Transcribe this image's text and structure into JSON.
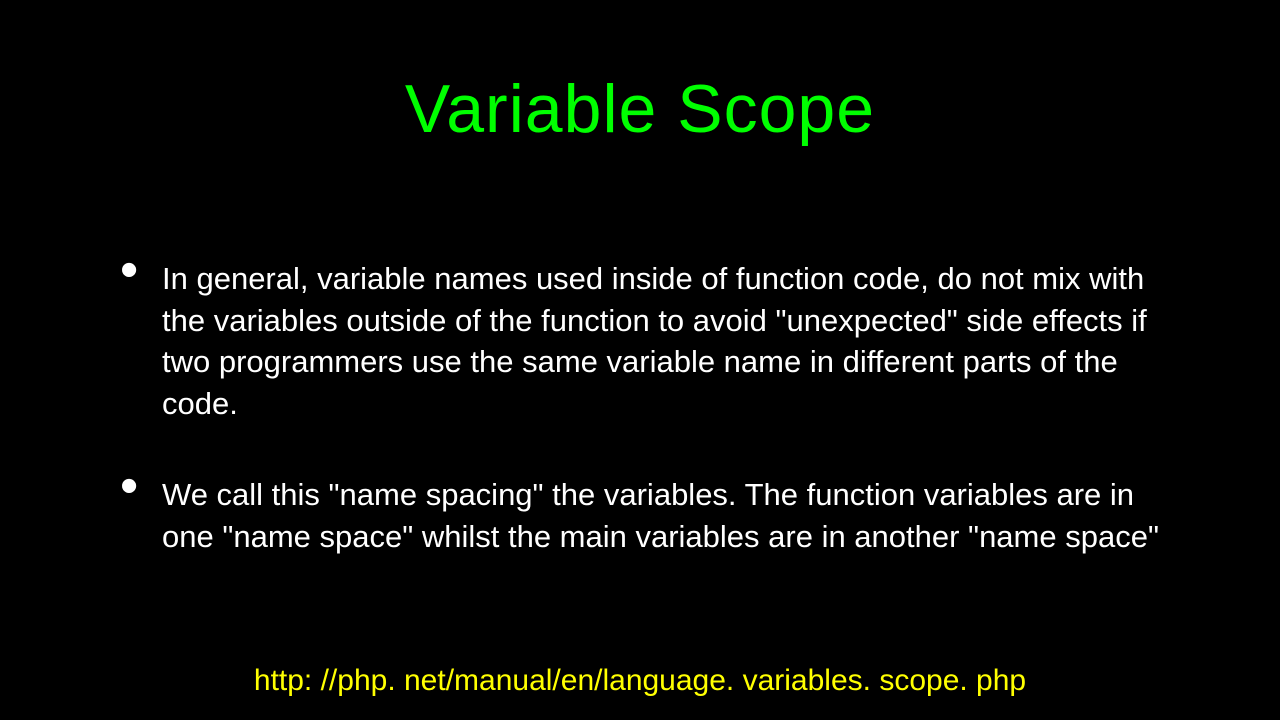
{
  "slide": {
    "title": "Variable Scope",
    "title_color": "#00ff00",
    "title_fontsize": 68,
    "background_color": "#000000",
    "bullets": [
      "In general, variable names used inside of function code, do not mix with the variables outside of the function to avoid \"unexpected\" side effects if two programmers use the same variable name in different parts of the code.",
      "We call this \"name spacing\" the variables.   The function variables are in one \"name space\" whilst the main variables are in another \"name space\""
    ],
    "bullet_color": "#ffffff",
    "bullet_fontsize": 31,
    "footer_link": "http: //php. net/manual/en/language. variables. scope. php",
    "footer_color": "#ffff00",
    "footer_fontsize": 30
  }
}
